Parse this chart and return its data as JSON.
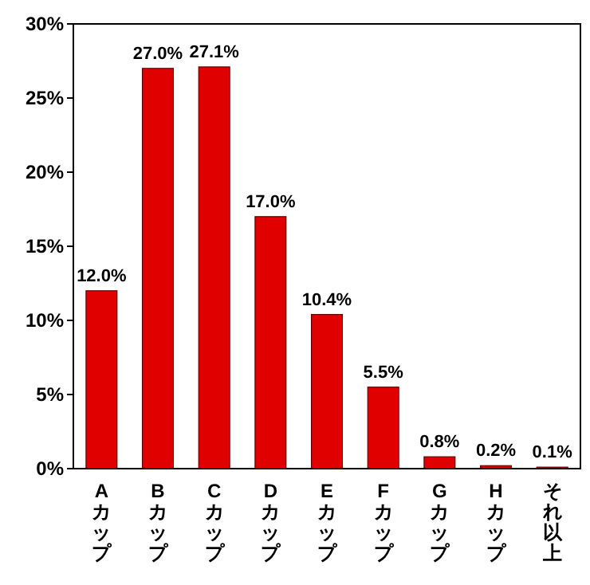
{
  "chart_data": {
    "type": "bar",
    "categories": [
      "Aカップ",
      "Bカップ",
      "Cカップ",
      "Dカップ",
      "Eカップ",
      "Fカップ",
      "Gカップ",
      "Hカップ",
      "それ以上"
    ],
    "values": [
      12.0,
      27.0,
      27.1,
      17.0,
      10.4,
      5.5,
      0.8,
      0.2,
      0.1
    ],
    "value_labels": [
      "12.0%",
      "27.0%",
      "27.1%",
      "17.0%",
      "10.4%",
      "5.5%",
      "0.8%",
      "0.2%",
      "0.1%"
    ],
    "color": "#e00000",
    "ylim": [
      0,
      30
    ],
    "yticks": [
      {
        "value": 0,
        "label": "0%"
      },
      {
        "value": 5,
        "label": "5%"
      },
      {
        "value": 10,
        "label": "10%"
      },
      {
        "value": 15,
        "label": "15%"
      },
      {
        "value": 20,
        "label": "20%"
      },
      {
        "value": 25,
        "label": "25%"
      },
      {
        "value": 30,
        "label": "30%"
      }
    ],
    "grid": false
  }
}
